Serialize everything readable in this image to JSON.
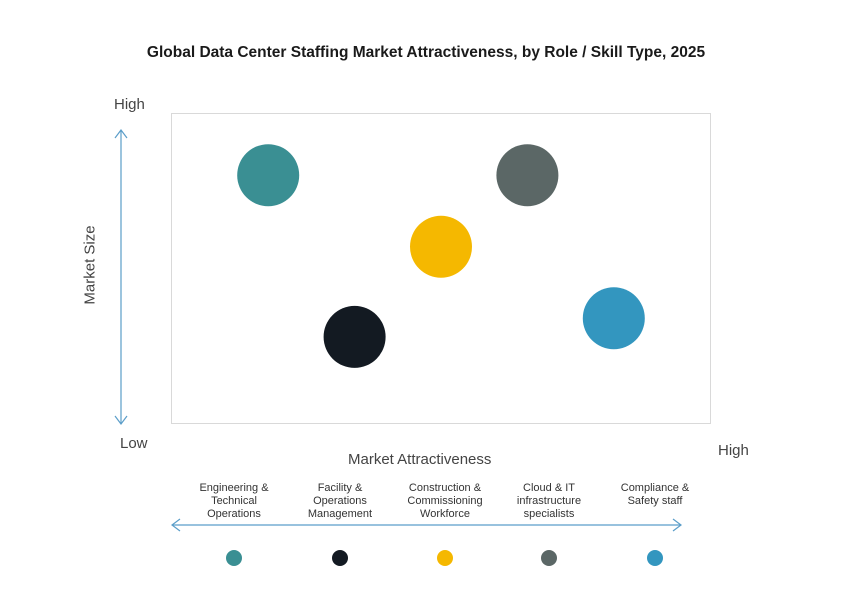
{
  "chart_data": {
    "type": "scatter",
    "title": "Global Data Center Staffing Market Attractiveness,  by Role / Skill Type, 2025",
    "xlabel": "Market Attractiveness",
    "ylabel": "Market Size",
    "y_axis": {
      "low_label": "Low",
      "high_label": "High"
    },
    "x_axis": {
      "high_label": "High"
    },
    "xlim": [
      0,
      10
    ],
    "ylim": [
      0,
      10
    ],
    "grid": false,
    "legend_position": "bottom",
    "series": [
      {
        "name": "Engineering &\nTechnical\nOperations",
        "x": 1.8,
        "y": 8.0,
        "color": "#3a8f93"
      },
      {
        "name": "Facility &\nOperations\nManagement",
        "x": 3.4,
        "y": 2.8,
        "color": "#131a22"
      },
      {
        "name": "Construction &\nCommissioning\nWorkforce",
        "x": 5.0,
        "y": 5.7,
        "color": "#f5b800"
      },
      {
        "name": "Cloud & IT\ninfrastructure\nspecialists",
        "x": 6.6,
        "y": 8.0,
        "color": "#5b6766"
      },
      {
        "name": "Compliance &\nSafety staff",
        "x": 8.2,
        "y": 3.4,
        "color": "#3396bf"
      }
    ]
  },
  "colors": {
    "axis_arrow": "#5b9ec9",
    "plot_border": "#d9d9d9"
  }
}
